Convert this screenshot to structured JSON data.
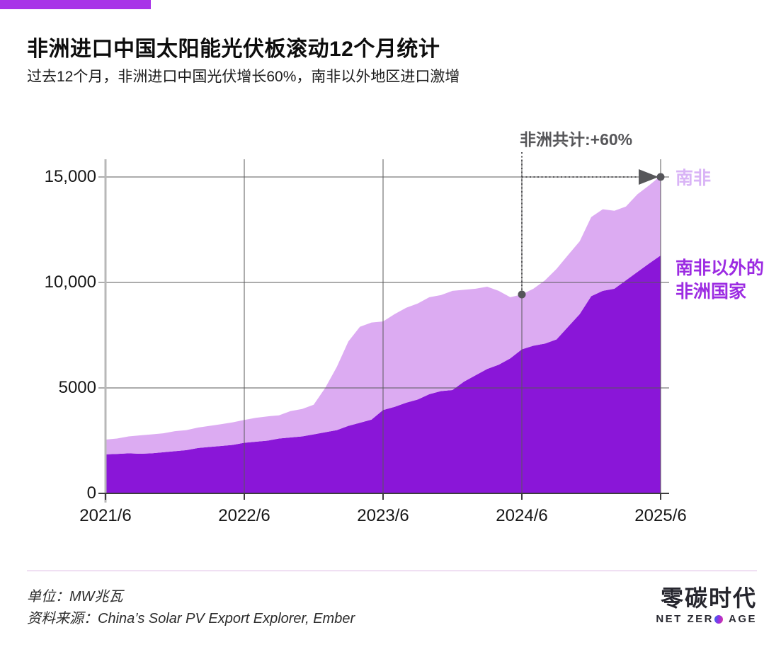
{
  "brand": {
    "bar_color": "#a832e8"
  },
  "header": {
    "title": "非洲进口中国太阳能光伏板滚动12个月统计",
    "subtitle": "过去12个月，非洲进口中国光伏增长60%，南非以外地区进口激增"
  },
  "chart_data": {
    "type": "area",
    "stacked": true,
    "title": "非洲进口中国太阳能光伏板滚动12个月统计",
    "unit": "MW",
    "x_interval": "monthly",
    "x_start": "2021/6",
    "x_end": "2025/6",
    "x_tick_labels": [
      "2021/6",
      "2022/6",
      "2023/6",
      "2024/6",
      "2025/6"
    ],
    "y_ticks": [
      0,
      5000,
      10000,
      15000
    ],
    "y_tick_labels": [
      "0",
      "5000",
      "10,000",
      "15,000"
    ],
    "ylim": [
      0,
      15000
    ],
    "grid": true,
    "series": [
      {
        "name": "南非以外的非洲国家",
        "color": "#8a16d8",
        "values": [
          1850,
          1870,
          1900,
          1880,
          1900,
          1950,
          2000,
          2050,
          2150,
          2200,
          2250,
          2300,
          2400,
          2450,
          2500,
          2600,
          2650,
          2700,
          2800,
          2900,
          3000,
          3200,
          3350,
          3500,
          3950,
          4100,
          4300,
          4450,
          4700,
          4850,
          4900,
          5300,
          5600,
          5900,
          6100,
          6400,
          6830,
          7000,
          7100,
          7300,
          7900,
          8500,
          9350,
          9600,
          9700,
          10100,
          10500,
          10900,
          11280
        ]
      },
      {
        "name": "南非",
        "color": "#dcabf2",
        "values": [
          700,
          730,
          800,
          870,
          900,
          900,
          950,
          950,
          970,
          1000,
          1030,
          1070,
          1080,
          1130,
          1150,
          1100,
          1250,
          1300,
          1400,
          2100,
          3000,
          4000,
          4550,
          4600,
          4200,
          4400,
          4500,
          4550,
          4600,
          4550,
          4700,
          4350,
          4100,
          3900,
          3500,
          2900,
          2600,
          2700,
          3000,
          3340,
          3400,
          3450,
          3750,
          3870,
          3700,
          3500,
          3680,
          3700,
          3770
        ]
      }
    ],
    "annotation": {
      "text": "非洲共计:+60%",
      "from_index": 36,
      "from_x_label": "2024/6",
      "to_index": 48,
      "to_x_label": "2025/6"
    }
  },
  "labels": {
    "series_top": "南非",
    "series_top_color": "#d9b4f6",
    "series_bottom_line1": "南非以外的",
    "series_bottom_line2": "非洲国家",
    "series_bottom_color": "#9c2be2"
  },
  "footer": {
    "unit": "单位：MW兆瓦",
    "source": "资料来源：China’s Solar PV Export Explorer, Ember",
    "logo_cn": "零碳时代",
    "logo_en_full": "NET ZERO AGE",
    "logo_en_left": "NET ZER",
    "logo_en_right": "AGE"
  }
}
